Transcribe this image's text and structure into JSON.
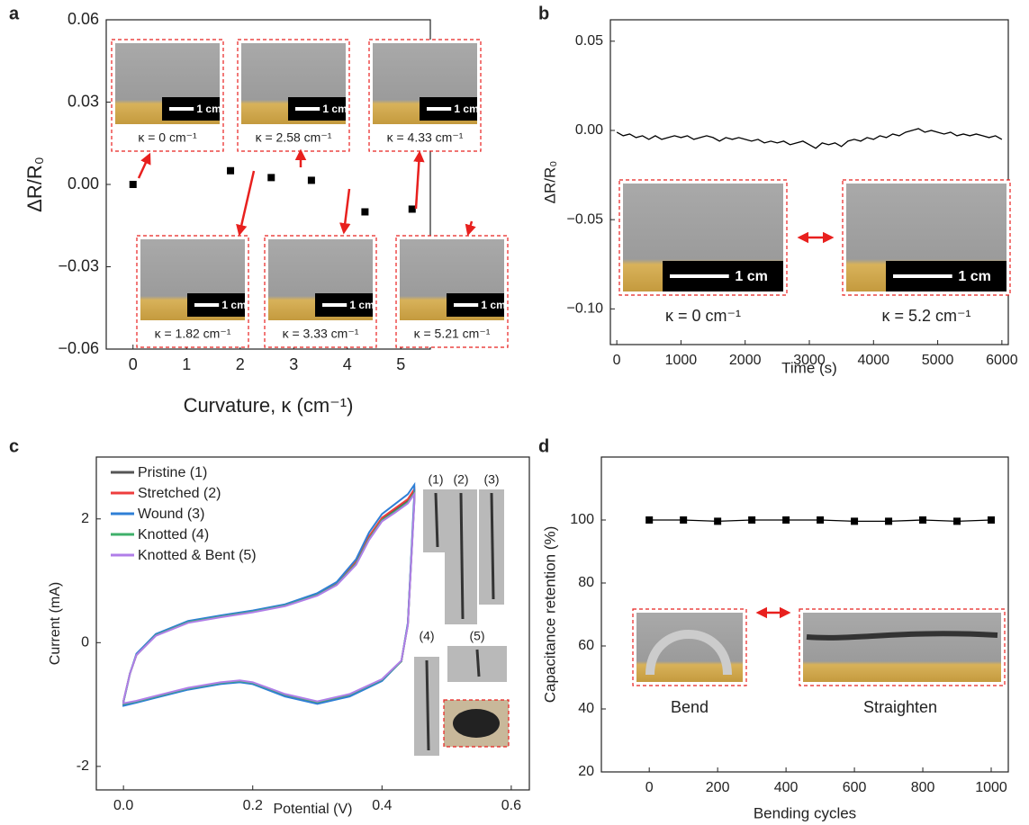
{
  "chart_data": [
    {
      "type": "scatter",
      "panel_label": "a",
      "x_label": "Curvature, κ (cm⁻¹)",
      "y_label": "ΔR/R₀",
      "x": [
        0,
        1.82,
        2.58,
        3.33,
        4.33,
        5.21
      ],
      "values": [
        0.0,
        0.005,
        0.0025,
        0.0015,
        -0.01,
        -0.009
      ],
      "color": "#000000",
      "xlim": [
        -0.5,
        5.55
      ],
      "xticks": [
        0,
        1,
        2,
        3,
        4,
        5
      ],
      "ylim": [
        -0.06,
        0.06
      ],
      "yticks": [
        {
          "value": -0.06,
          "label": "−0.06"
        },
        {
          "value": -0.03,
          "label": "−0.03"
        },
        {
          "value": 0,
          "label": "0.00"
        },
        0.03,
        0.06
      ],
      "inset_labels": [
        "κ = 0 cm⁻¹",
        "κ = 1.82 cm⁻¹",
        "κ = 2.58 cm⁻¹",
        "κ = 3.33 cm⁻¹",
        "κ = 4.33 cm⁻¹",
        "κ = 5.21 cm⁻¹"
      ],
      "scale_bar_label": "1 cm"
    },
    {
      "type": "line",
      "panel_label": "b",
      "x_label": "Time (s)",
      "y_label": "ΔR/R₀",
      "color": "#000000",
      "x": [
        0,
        100,
        200,
        300,
        400,
        500,
        600,
        700,
        800,
        900,
        1000,
        1100,
        1200,
        1300,
        1400,
        1500,
        1600,
        1700,
        1800,
        1900,
        2000,
        2100,
        2200,
        2300,
        2400,
        2500,
        2600,
        2700,
        2800,
        2900,
        3000,
        3100,
        3200,
        3300,
        3400,
        3500,
        3600,
        3700,
        3800,
        3900,
        4000,
        4100,
        4200,
        4300,
        4400,
        4500,
        4600,
        4700,
        4800,
        4900,
        5000,
        5100,
        5200,
        5300,
        5400,
        5500,
        5600,
        5700,
        5800,
        5900,
        6000
      ],
      "values": [
        -0.001,
        -0.003,
        -0.002,
        -0.004,
        -0.003,
        -0.005,
        -0.003,
        -0.005,
        -0.004,
        -0.003,
        -0.004,
        -0.003,
        -0.005,
        -0.004,
        -0.003,
        -0.004,
        -0.006,
        -0.004,
        -0.005,
        -0.004,
        -0.005,
        -0.006,
        -0.005,
        -0.007,
        -0.006,
        -0.007,
        -0.006,
        -0.008,
        -0.007,
        -0.006,
        -0.008,
        -0.01,
        -0.007,
        -0.008,
        -0.007,
        -0.009,
        -0.006,
        -0.005,
        -0.006,
        -0.004,
        -0.005,
        -0.003,
        -0.004,
        -0.002,
        -0.003,
        -0.001,
        0.0,
        0.001,
        -0.001,
        0.0,
        -0.001,
        -0.002,
        -0.001,
        -0.003,
        -0.002,
        -0.003,
        -0.002,
        -0.003,
        -0.004,
        -0.003,
        -0.005
      ],
      "xlim": [
        -100,
        6100
      ],
      "xticks": [
        0,
        1000,
        2000,
        3000,
        4000,
        5000,
        6000
      ],
      "ylim": [
        -0.12,
        0.062
      ],
      "yticks": [
        {
          "value": -0.1,
          "label": "−0.10"
        },
        {
          "value": -0.05,
          "label": "−0.05"
        },
        {
          "value": 0,
          "label": "0.00"
        },
        0.05
      ],
      "inset_labels": [
        "κ = 0 cm⁻¹",
        "κ = 5.2 cm⁻¹"
      ],
      "scale_bar_label": "1 cm"
    },
    {
      "type": "line",
      "panel_label": "c",
      "x_label": "Potential (V)",
      "y_label": "Current (mA)",
      "legend": "upper left",
      "x": [
        0,
        0.01,
        0.02,
        0.05,
        0.1,
        0.15,
        0.2,
        0.25,
        0.3,
        0.33,
        0.36,
        0.38,
        0.4,
        0.42,
        0.44,
        0.45,
        0.45,
        0.44,
        0.43,
        0.4,
        0.35,
        0.3,
        0.25,
        0.2,
        0.18,
        0.15,
        0.1,
        0.05,
        0.02,
        0,
        0
      ],
      "series": [
        {
          "name": "Pristine (1)",
          "color": "#555555",
          "values": [
            -0.95,
            -0.5,
            -0.2,
            0.12,
            0.33,
            0.42,
            0.5,
            0.6,
            0.78,
            0.95,
            1.3,
            1.7,
            2.0,
            2.15,
            2.3,
            2.45,
            2.3,
            0.3,
            -0.3,
            -0.6,
            -0.85,
            -0.97,
            -0.85,
            -0.66,
            -0.63,
            -0.66,
            -0.75,
            -0.88,
            -0.96,
            -1.0,
            -0.95
          ]
        },
        {
          "name": "Stretched (2)",
          "color": "#ee3d3d",
          "values": [
            -0.95,
            -0.5,
            -0.2,
            0.12,
            0.33,
            0.43,
            0.5,
            0.6,
            0.79,
            0.96,
            1.31,
            1.72,
            2.02,
            2.17,
            2.32,
            2.48,
            2.32,
            0.3,
            -0.3,
            -0.6,
            -0.85,
            -0.97,
            -0.86,
            -0.66,
            -0.63,
            -0.66,
            -0.75,
            -0.88,
            -0.96,
            -1.0,
            -0.95
          ]
        },
        {
          "name": "Wound (3)",
          "color": "#2f7fd6",
          "values": [
            -0.96,
            -0.5,
            -0.18,
            0.14,
            0.35,
            0.44,
            0.52,
            0.62,
            0.8,
            0.98,
            1.35,
            1.78,
            2.08,
            2.24,
            2.4,
            2.55,
            2.4,
            0.32,
            -0.3,
            -0.62,
            -0.87,
            -0.99,
            -0.87,
            -0.67,
            -0.64,
            -0.67,
            -0.76,
            -0.89,
            -0.97,
            -1.02,
            -0.96
          ]
        },
        {
          "name": "Knotted (4)",
          "color": "#3fb06a",
          "values": [
            -0.95,
            -0.5,
            -0.2,
            0.12,
            0.33,
            0.42,
            0.5,
            0.6,
            0.77,
            0.94,
            1.28,
            1.68,
            1.98,
            2.12,
            2.27,
            2.42,
            2.27,
            0.29,
            -0.3,
            -0.6,
            -0.84,
            -0.96,
            -0.84,
            -0.65,
            -0.62,
            -0.65,
            -0.74,
            -0.87,
            -0.95,
            -0.99,
            -0.95
          ]
        },
        {
          "name": "Knotted & Bent (5)",
          "color": "#b07ee8",
          "values": [
            -0.94,
            -0.5,
            -0.2,
            0.11,
            0.32,
            0.41,
            0.49,
            0.59,
            0.76,
            0.93,
            1.26,
            1.66,
            1.96,
            2.1,
            2.25,
            2.4,
            2.25,
            0.28,
            -0.29,
            -0.59,
            -0.83,
            -0.95,
            -0.83,
            -0.64,
            -0.61,
            -0.64,
            -0.73,
            -0.86,
            -0.94,
            -0.98,
            -0.94
          ]
        }
      ],
      "xlim": [
        -0.042,
        0.628
      ],
      "xticks": [
        {
          "value": 0,
          "label": "0.0"
        },
        0.2,
        0.4,
        0.6
      ],
      "ylim": [
        -2.38,
        3.0
      ],
      "yticks": [
        -2,
        0,
        2
      ],
      "image_labels": [
        "(1)",
        "(2)",
        "(3)",
        "(4)",
        "(5)"
      ]
    },
    {
      "type": "line",
      "panel_label": "d",
      "x_label": "Bending cycles",
      "y_label": "Capacitance retention (%)",
      "markers": true,
      "color": "#000000",
      "x": [
        0,
        100,
        200,
        300,
        400,
        500,
        600,
        700,
        800,
        900,
        1000
      ],
      "values": [
        100,
        100,
        99.6,
        100,
        100,
        100,
        99.6,
        99.6,
        100,
        99.6,
        100
      ],
      "xlim": [
        -140,
        1050
      ],
      "xticks": [
        0,
        200,
        400,
        600,
        800,
        1000
      ],
      "ylim": [
        20,
        120
      ],
      "yticks": [
        20,
        40,
        60,
        80,
        100
      ],
      "annotations": [
        "Bend",
        "Straighten"
      ]
    }
  ]
}
